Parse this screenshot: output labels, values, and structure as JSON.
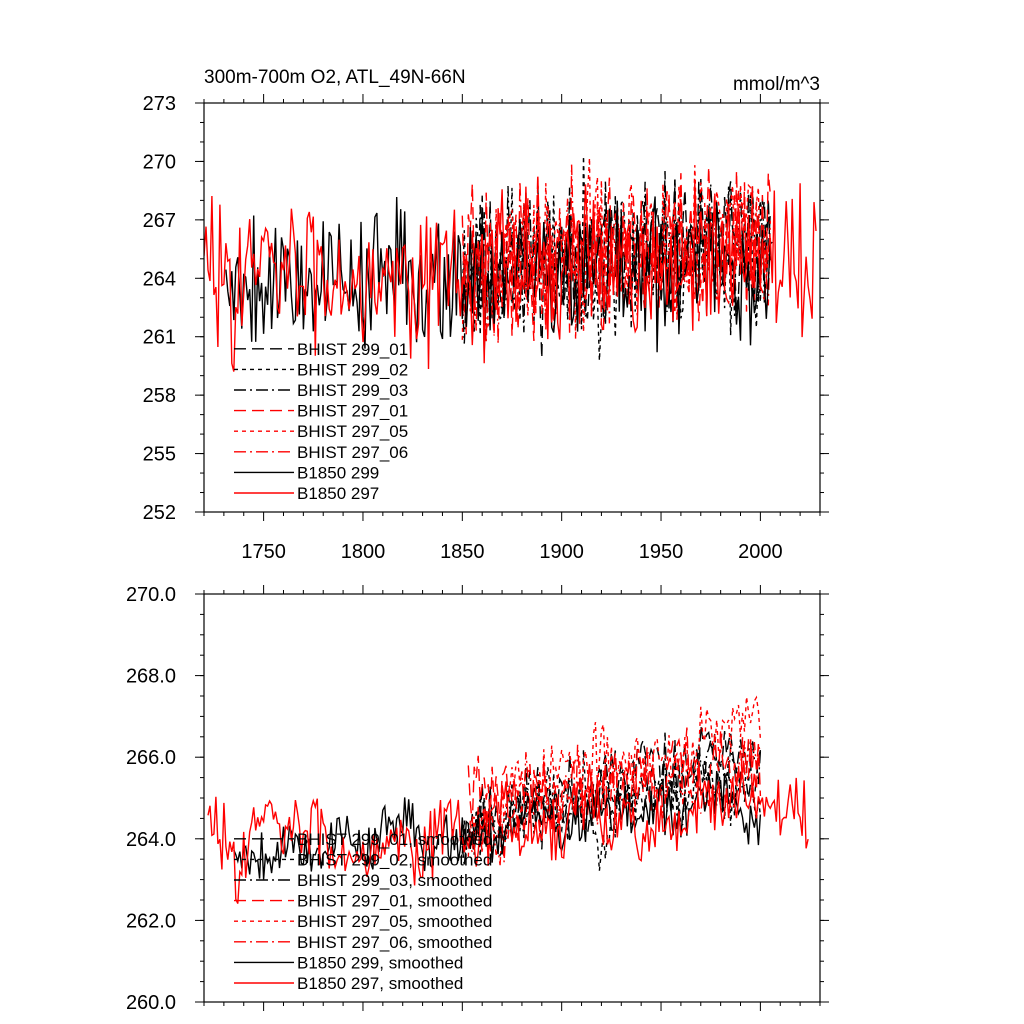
{
  "chart_data": [
    {
      "type": "line",
      "title": "300m-700m O2, ATL_49N-66N",
      "units": "mmol/m^3",
      "xlim": [
        1720,
        2030
      ],
      "ylim": [
        252,
        273
      ],
      "xticks": [
        1750,
        1800,
        1850,
        1900,
        1950,
        2000
      ],
      "yticks": [
        252,
        255,
        258,
        261,
        264,
        267,
        270,
        273
      ],
      "ytick_labels": [
        "252",
        "255",
        "258",
        "261",
        "264",
        "267",
        "270",
        "273"
      ],
      "show_xtick_labels": true,
      "legend_position": "lower-left",
      "series": [
        {
          "name": "BHIST 299_01",
          "color": "#000000",
          "dash": "long",
          "x_start": 1850,
          "x_end": 2005,
          "mean": 264.5,
          "trend": 1.5,
          "noise": 2.6,
          "seed": 11
        },
        {
          "name": "BHIST 299_02",
          "color": "#000000",
          "dash": "short",
          "x_start": 1850,
          "x_end": 2005,
          "mean": 264.3,
          "trend": 1.3,
          "noise": 2.8,
          "seed": 23
        },
        {
          "name": "BHIST 299_03",
          "color": "#000000",
          "dash": "dashdot",
          "x_start": 1850,
          "x_end": 2005,
          "mean": 264.6,
          "trend": 1.2,
          "noise": 2.5,
          "seed": 37
        },
        {
          "name": "BHIST 297_01",
          "color": "#ff0000",
          "dash": "long",
          "x_start": 1850,
          "x_end": 2005,
          "mean": 264.7,
          "trend": 1.4,
          "noise": 2.8,
          "seed": 41
        },
        {
          "name": "BHIST 297_05",
          "color": "#ff0000",
          "dash": "short",
          "x_start": 1850,
          "x_end": 2005,
          "mean": 264.8,
          "trend": 1.6,
          "noise": 2.7,
          "seed": 53
        },
        {
          "name": "BHIST 297_06",
          "color": "#ff0000",
          "dash": "dashdot",
          "x_start": 1850,
          "x_end": 2005,
          "mean": 264.5,
          "trend": 1.3,
          "noise": 2.6,
          "seed": 67
        },
        {
          "name": "B1850 299",
          "color": "#000000",
          "dash": "solid",
          "x_start": 1731,
          "x_end": 2006,
          "mean": 264.0,
          "trend": 0.4,
          "noise": 2.6,
          "seed": 79
        },
        {
          "name": "B1850 297",
          "color": "#ff0000",
          "dash": "solid",
          "x_start": 1720,
          "x_end": 2028,
          "mean": 264.3,
          "trend": 0.3,
          "noise": 2.7,
          "seed": 83
        }
      ]
    },
    {
      "type": "line",
      "title": "",
      "units": "",
      "xlim": [
        1720,
        2030
      ],
      "ylim": [
        260,
        270
      ],
      "xticks": [
        1750,
        1800,
        1850,
        1900,
        1950,
        2000
      ],
      "yticks": [
        260,
        262,
        264,
        266,
        268,
        270
      ],
      "ytick_labels": [
        "260.0",
        "262.0",
        "264.0",
        "266.0",
        "268.0",
        "270.0"
      ],
      "show_xtick_labels": false,
      "legend_position": "lower-left",
      "series": [
        {
          "name": "BHIST 299_01, smoothed",
          "color": "#000000",
          "dash": "long",
          "x_start": 1850,
          "x_end": 2000,
          "mean": 264.5,
          "trend": 1.6,
          "noise": 1.6,
          "seed": 11
        },
        {
          "name": "BHIST 299_02, smoothed",
          "color": "#000000",
          "dash": "short",
          "x_start": 1850,
          "x_end": 2000,
          "mean": 264.3,
          "trend": 1.4,
          "noise": 1.7,
          "seed": 23
        },
        {
          "name": "BHIST 299_03, smoothed",
          "color": "#000000",
          "dash": "dashdot",
          "x_start": 1850,
          "x_end": 2000,
          "mean": 264.5,
          "trend": 1.2,
          "noise": 1.4,
          "seed": 37
        },
        {
          "name": "BHIST 297_01, smoothed",
          "color": "#ff0000",
          "dash": "long",
          "x_start": 1853,
          "x_end": 2000,
          "mean": 264.8,
          "trend": 1.2,
          "noise": 1.8,
          "seed": 41
        },
        {
          "name": "BHIST 297_05, smoothed",
          "color": "#ff0000",
          "dash": "short",
          "x_start": 1853,
          "x_end": 2000,
          "mean": 265.0,
          "trend": 1.6,
          "noise": 1.6,
          "seed": 53
        },
        {
          "name": "BHIST 297_06, smoothed",
          "color": "#ff0000",
          "dash": "dashdot",
          "x_start": 1853,
          "x_end": 2000,
          "mean": 264.6,
          "trend": 1.2,
          "noise": 1.5,
          "seed": 67
        },
        {
          "name": "B1850 299, smoothed",
          "color": "#000000",
          "dash": "solid",
          "x_start": 1735,
          "x_end": 2000,
          "mean": 263.8,
          "trend": 1.0,
          "noise": 1.3,
          "seed": 79
        },
        {
          "name": "B1850 297, smoothed",
          "color": "#ff0000",
          "dash": "solid",
          "x_start": 1722,
          "x_end": 2024,
          "mean": 264.0,
          "trend": 0.6,
          "noise": 1.7,
          "seed": 83
        }
      ]
    }
  ]
}
